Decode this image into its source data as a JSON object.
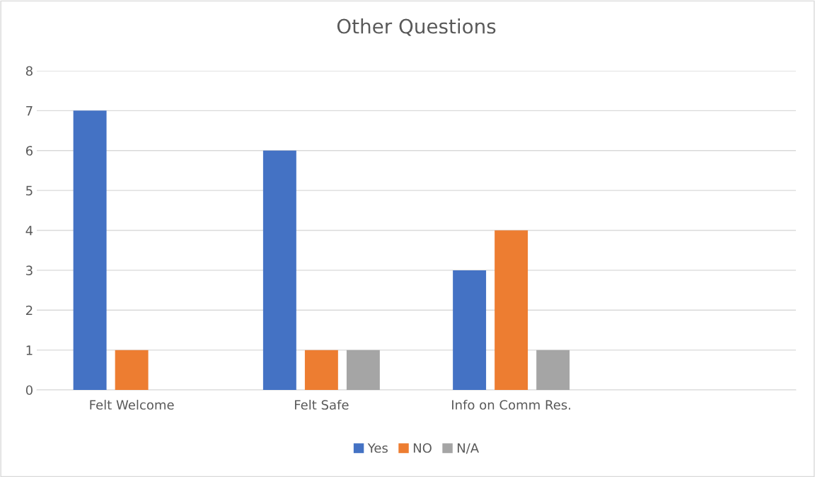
{
  "chart_data": {
    "type": "bar",
    "title": "Other Questions",
    "categories": [
      "Felt Welcome",
      "Felt Safe",
      "Info on Comm Res.",
      null
    ],
    "series": [
      {
        "name": "Yes",
        "color": "#4472c4",
        "values": [
          7,
          6,
          3,
          null
        ]
      },
      {
        "name": "NO",
        "color": "#ed7d31",
        "values": [
          1,
          1,
          4,
          null
        ]
      },
      {
        "name": "N/A",
        "color": "#a5a5a5",
        "values": [
          null,
          1,
          1,
          null
        ]
      }
    ],
    "ylim": [
      0,
      8
    ],
    "yticks": [
      0,
      1,
      2,
      3,
      4,
      5,
      6,
      7,
      8
    ],
    "grid": "y",
    "legend": "bottom"
  }
}
